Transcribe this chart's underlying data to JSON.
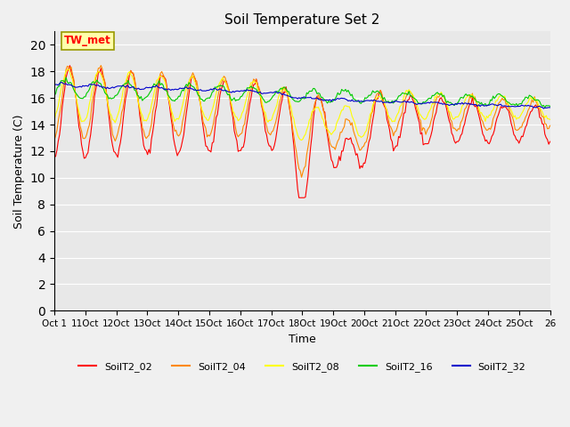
{
  "title": "Soil Temperature Set 2",
  "xlabel": "Time",
  "ylabel": "Soil Temperature (C)",
  "ylim": [
    0,
    21
  ],
  "yticks": [
    0,
    2,
    4,
    6,
    8,
    10,
    12,
    14,
    16,
    18,
    20
  ],
  "xtick_labels": [
    "Oct 1",
    "11Oct",
    "12Oct",
    "13Oct",
    "14Oct",
    "15Oct",
    "16Oct",
    "17Oct",
    "18Oct",
    "19Oct",
    "20Oct",
    "21Oct",
    "22Oct",
    "23Oct",
    "24Oct",
    "25Oct",
    "26"
  ],
  "series_colors": {
    "SoilT2_02": "#ff0000",
    "SoilT2_04": "#ff8800",
    "SoilT2_08": "#ffff00",
    "SoilT2_16": "#00cc00",
    "SoilT2_32": "#0000cc"
  },
  "annotation_text": "TW_met",
  "background_color": "#e8e8e8",
  "figsize": [
    6.4,
    4.8
  ],
  "dpi": 100
}
